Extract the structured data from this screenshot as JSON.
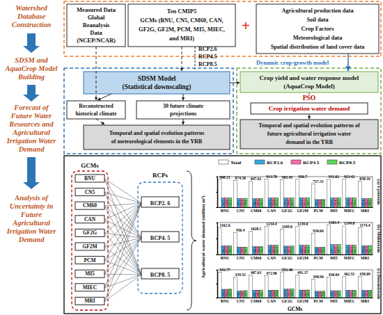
{
  "stages": [
    [
      "Watershed",
      "Database",
      "Construction"
    ],
    [
      "SDSM and",
      "AquaCrop Model",
      "Building"
    ],
    [
      "Forecast of",
      "Future Water",
      "Resources and",
      "Agricultural",
      "Irrigation Water",
      "Demand"
    ],
    [
      "Analysis of",
      "Uncertainty in",
      "Future",
      "Agricultural",
      "Irrigation Water",
      "Demand"
    ]
  ],
  "sources": {
    "measured": [
      "Measured Data",
      "Global",
      "Reanalysis",
      "Data",
      "(NCEP/NCAR)"
    ],
    "gcms": [
      "Ten CMIP5",
      "GCMs (BNU, CN5, CM60, CAN,",
      "GF2G, GF2M, PCM, MI5, MIEC,",
      "and MRI)"
    ],
    "plus": "+",
    "agriculture": [
      "Agricultural production data",
      "Soil data",
      "Crop Factors",
      "Meteorological data",
      "Spatial distribution of land cover data"
    ]
  },
  "scenarios": [
    "RCP2.6",
    "RCP4.5",
    "RCP8.5"
  ],
  "dynamic_label": "Dynamic crop-growth model",
  "sdsm": {
    "model": [
      "SDSM Model",
      "(Statistical downscaling)"
    ],
    "historical": [
      "Reconstructed",
      "historical climate"
    ],
    "future": [
      "30 future climate",
      "projections"
    ],
    "patterns": [
      "Temporal and spatial evolution patterns",
      "of meteorological elements in the YRB"
    ]
  },
  "aquacrop": {
    "model": [
      "Crop yield and water response model",
      "(AquaCrop Model)"
    ],
    "pso": "PSO",
    "demand": "Crop irrigation water demand",
    "patterns": [
      "Temporal and spatial evolution patterns of",
      "future agricultural irrigation water",
      "demand in the YRB"
    ]
  },
  "uncertainty": {
    "gcm_title": "GCMs",
    "gcms": [
      "BNU",
      "CN5",
      "CM60",
      "CAN",
      "GF2G",
      "GF2M",
      "PCM",
      "MI5",
      "MIEC",
      "MRI"
    ],
    "rcp_title": "RCPs",
    "rcps": [
      "RCP2. 6",
      "RCP4. 5",
      "RCP8. 5"
    ]
  },
  "chart_data": [
    {
      "type": "bar",
      "title": "(a) Upstream",
      "legend": "top",
      "data_labels": true,
      "tick_labels": "x",
      "categories": [
        "BNU",
        "CN5",
        "CM60",
        "CAN",
        "GF2G",
        "GF2M",
        "PCM",
        "MI5",
        "MIEC",
        "MRI"
      ],
      "ylim": [
        0,
        1000
      ],
      "yticks": [
        0,
        500,
        1000
      ],
      "series": [
        {
          "name": "Total",
          "color": "#ffffff",
          "values": [
            908.21,
            874.36,
            847.62,
            913.78,
            903.45,
            926.7,
            757.31,
            911.02,
            923.42,
            858.16
          ]
        },
        {
          "name": "RCP2.6",
          "color": "#3aa8e0",
          "values": [
            302.7,
            290.5,
            281.2,
            303.5,
            300.2,
            307.8,
            251.3,
            302.6,
            306.8,
            285.1
          ]
        },
        {
          "name": "RCP4.5",
          "color": "#f76ca7",
          "values": [
            300.1,
            289.8,
            280.9,
            302.8,
            299.6,
            307.2,
            250.9,
            302.1,
            306.2,
            284.5
          ]
        },
        {
          "name": "RCP8.5",
          "color": "#5ed65e",
          "values": [
            305.4,
            294.1,
            285.5,
            307.5,
            303.7,
            311.7,
            255.1,
            306.3,
            310.4,
            288.6
          ]
        }
      ]
    },
    {
      "type": "bar",
      "title": "(b) Midstream",
      "data_labels": true,
      "tick_labels": "x",
      "y_label": "Agricultural water demand (million m³)",
      "categories": [
        "BNU",
        "CN5",
        "CM60",
        "CAN",
        "GF2G",
        "GF2M",
        "PCM",
        "MI5",
        "MIEC",
        "MRI"
      ],
      "ylim": [
        0,
        1400
      ],
      "yticks": [
        0,
        700,
        1400
      ],
      "series": [
        {
          "name": "Total",
          "color": "#ffffff",
          "values": [
            1162.6,
            956.4,
            1028.1,
            1234.4,
            1109.8,
            1239.8,
            930.66,
            1303.4,
            1249.8,
            1174.4
          ]
        },
        {
          "name": "RCP2.6",
          "color": "#3aa8e0",
          "values": [
            386.2,
            317.6,
            341.5,
            410.2,
            368.6,
            411.9,
            309.1,
            433.0,
            415.2,
            390.1
          ]
        },
        {
          "name": "RCP4.5",
          "color": "#f76ca7",
          "values": [
            385.5,
            317.1,
            340.8,
            409.4,
            367.9,
            411.1,
            308.5,
            432.1,
            414.3,
            389.3
          ]
        },
        {
          "name": "RCP8.5",
          "color": "#5ed65e",
          "values": [
            390.9,
            321.7,
            345.8,
            414.8,
            373.3,
            416.8,
            313.1,
            438.3,
            420.3,
            395.0
          ]
        }
      ]
    },
    {
      "type": "bar",
      "title": "(c) Downstream",
      "data_labels": true,
      "tick_labels": "x",
      "x_label": "GCMs",
      "categories": [
        "BNU",
        "CN5",
        "CM60",
        "CAN",
        "GF2G",
        "GF2M",
        "PCM",
        "MI5",
        "MIEC",
        "MRI"
      ],
      "ylim": [
        0,
        600
      ],
      "yticks": [
        0,
        300,
        600
      ],
      "series": [
        {
          "name": "Total",
          "color": "#ffffff",
          "values": [
            543.77,
            439.51,
            487.63,
            472.98,
            553.48,
            491.37,
            398.96,
            438.04,
            462.51,
            458.89
          ]
        },
        {
          "name": "RCP2.6",
          "color": "#3aa8e0",
          "values": [
            180.6,
            146.0,
            162.0,
            157.1,
            183.9,
            163.2,
            132.5,
            145.5,
            153.6,
            152.4
          ]
        },
        {
          "name": "RCP4.5",
          "color": "#f76ca7",
          "values": [
            180.2,
            145.7,
            161.6,
            156.8,
            183.5,
            162.9,
            132.2,
            145.2,
            153.3,
            152.1
          ]
        },
        {
          "name": "RCP8.5",
          "color": "#5ed65e",
          "values": [
            182.97,
            147.8,
            164.0,
            159.1,
            186.1,
            165.3,
            134.3,
            147.3,
            155.6,
            154.4
          ]
        }
      ]
    }
  ]
}
